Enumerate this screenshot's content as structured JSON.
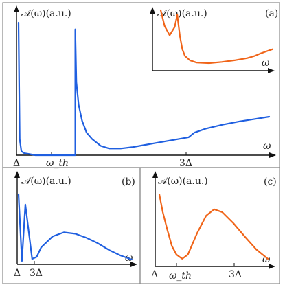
{
  "colors": {
    "blue": "#1f5fe0",
    "orange": "#f06418",
    "frame": "#8a8a8a"
  },
  "chart_data": [
    {
      "panel": "(a)",
      "type": "line",
      "ylabel": "𝒜(ω)(a.u.)",
      "xlabel": "ω",
      "xticks": [
        "Δ",
        "ω_th",
        "3Δ"
      ],
      "series": [
        {
          "color": "#1f5fe0",
          "x": [
            0.0,
            0.02,
            0.05,
            0.1,
            0.2,
            0.3,
            1.0,
            1.0,
            1.02,
            1.06,
            1.12,
            1.2,
            1.3,
            1.45,
            1.6,
            1.8,
            2.0,
            2.2,
            2.4,
            2.6,
            2.8,
            3.0,
            3.1,
            3.3,
            3.6,
            3.9,
            4.2,
            4.42
          ],
          "y": [
            1.0,
            0.12,
            0.03,
            0.015,
            0.008,
            0.0,
            0.0,
            0.95,
            0.55,
            0.38,
            0.26,
            0.17,
            0.12,
            0.07,
            0.05,
            0.05,
            0.06,
            0.075,
            0.09,
            0.105,
            0.12,
            0.135,
            0.17,
            0.2,
            0.23,
            0.255,
            0.275,
            0.29
          ]
        }
      ]
    },
    {
      "panel": "(a) inset",
      "type": "line",
      "ylabel": "𝒜(ω)(a.u.)",
      "xlabel": "ω",
      "series": [
        {
          "color": "#f06418",
          "x": [
            0.12,
            0.15,
            0.19,
            0.23,
            0.25,
            0.27,
            0.29,
            0.31,
            0.35,
            0.4,
            0.5,
            0.6,
            0.7,
            0.8,
            0.86,
            0.9,
            0.95,
            1.0
          ],
          "y": [
            1.0,
            0.72,
            0.55,
            0.7,
            0.92,
            0.55,
            0.3,
            0.18,
            0.1,
            0.06,
            0.05,
            0.07,
            0.1,
            0.14,
            0.18,
            0.22,
            0.26,
            0.3
          ]
        }
      ]
    },
    {
      "panel": "(b)",
      "type": "line",
      "ylabel": "𝒜(ω)(a.u.)",
      "xlabel": "ω",
      "xticks": [
        "Δ",
        "3Δ"
      ],
      "series": [
        {
          "color": "#1f5fe0",
          "x": [
            0.0,
            0.03,
            0.06,
            0.12,
            0.16,
            0.2,
            0.3,
            0.4,
            0.5,
            0.6,
            0.7,
            0.8,
            0.9,
            1.0
          ],
          "y": [
            1.0,
            0.02,
            0.85,
            0.05,
            0.08,
            0.22,
            0.38,
            0.44,
            0.42,
            0.36,
            0.28,
            0.18,
            0.1,
            0.04
          ]
        }
      ]
    },
    {
      "panel": "(c)",
      "type": "line",
      "ylabel": "𝒜(ω)(a.u.)",
      "xlabel": "ω",
      "xticks": [
        "Δ",
        "ω_th",
        "3Δ"
      ],
      "series": [
        {
          "color": "#f06418",
          "x": [
            0.05,
            0.08,
            0.12,
            0.16,
            0.2,
            0.25,
            0.3,
            0.38,
            0.46,
            0.53,
            0.6,
            0.7,
            0.8,
            0.9,
            1.0
          ],
          "y": [
            0.95,
            0.7,
            0.45,
            0.22,
            0.1,
            0.04,
            0.1,
            0.4,
            0.65,
            0.74,
            0.7,
            0.54,
            0.35,
            0.17,
            0.04
          ]
        }
      ]
    }
  ]
}
